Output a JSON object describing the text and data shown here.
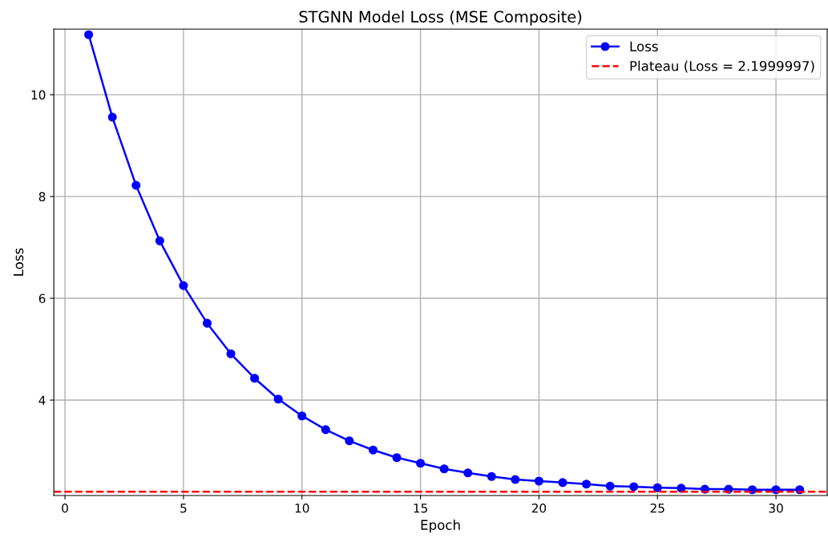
{
  "chart_data": {
    "type": "line",
    "title": "STGNN Model Loss (MSE Composite)",
    "xlabel": "Epoch",
    "ylabel": "Loss",
    "x": [
      1,
      2,
      3,
      4,
      5,
      6,
      7,
      8,
      9,
      10,
      11,
      12,
      13,
      14,
      15,
      16,
      17,
      18,
      19,
      20,
      21,
      22,
      23,
      24,
      25,
      26,
      27,
      28,
      29,
      30,
      31
    ],
    "series": [
      {
        "name": "Loss",
        "color": "#0000ff",
        "values": [
          11.18,
          9.56,
          8.22,
          7.13,
          6.25,
          5.51,
          4.91,
          4.43,
          4.02,
          3.69,
          3.42,
          3.2,
          3.02,
          2.87,
          2.76,
          2.65,
          2.57,
          2.5,
          2.44,
          2.41,
          2.38,
          2.35,
          2.31,
          2.3,
          2.28,
          2.27,
          2.25,
          2.25,
          2.24,
          2.24,
          2.24
        ]
      }
    ],
    "ref_lines": [
      {
        "axis": "y",
        "value": 2.1999997,
        "label": "Plateau (Loss = 2.1999997)",
        "color": "#ff0000",
        "line_style": "dashed"
      }
    ],
    "xlim": [
      -0.47,
      32.16
    ],
    "ylim": [
      2.126,
      11.29
    ],
    "xticks": [
      0,
      5,
      10,
      15,
      20,
      25,
      30
    ],
    "yticks": [
      4,
      6,
      8,
      10
    ],
    "grid": true,
    "legend": "top right",
    "marker": "circle",
    "line_style": "solid"
  }
}
